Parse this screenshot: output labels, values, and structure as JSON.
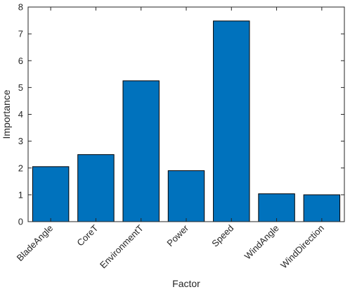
{
  "chart_data": {
    "type": "bar",
    "categories": [
      "BladeAngle",
      "CoreT",
      "EnvironmentT",
      "Power",
      "Speed",
      "WindAngle",
      "WindDirection"
    ],
    "values": [
      2.05,
      2.5,
      5.25,
      1.9,
      7.48,
      1.04,
      1.0
    ],
    "title": "",
    "xlabel": "Factor",
    "ylabel": "Importance",
    "ylim": [
      0,
      8
    ],
    "yticks": [
      0,
      1,
      2,
      3,
      4,
      5,
      6,
      7,
      8
    ],
    "grid": false,
    "bar_color": "#0072BD",
    "axis_color": "#262626"
  }
}
